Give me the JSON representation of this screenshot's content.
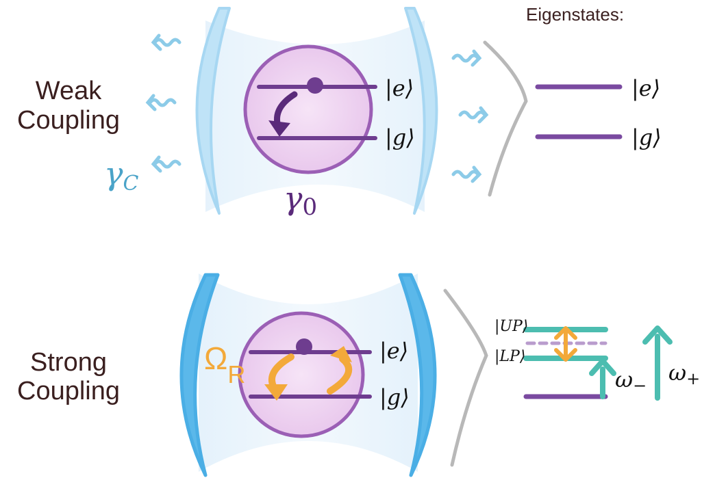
{
  "header": {
    "eigenstates_label": "Eigenstates:"
  },
  "weak": {
    "label_line1": "Weak",
    "label_line2": "Coupling",
    "gamma_c": "γ",
    "gamma_c_sub": "C",
    "gamma_0": "γ",
    "gamma_0_sub": "0",
    "ket_e": "|e⟩",
    "ket_g": "|g⟩",
    "eig_e": "|e⟩",
    "eig_g": "|g⟩"
  },
  "strong": {
    "label_line1": "Strong",
    "label_line2": "Coupling",
    "omega_r": "Ω",
    "omega_r_sub": "R",
    "ket_e": "|e⟩",
    "ket_g": "|g⟩",
    "ket_up": "|UP⟩",
    "ket_lp": "|LP⟩",
    "omega_minus": "ω",
    "omega_minus_sub": "−",
    "omega_plus": "ω",
    "omega_plus_sub": "+"
  },
  "colors": {
    "label_text": "#3a1f1f",
    "weak_mirror": "#bfe3f7",
    "strong_mirror": "#5bb8ea",
    "cavity_fill": "#e8f4fc",
    "atom_fill": "#f0d6f2",
    "atom_stroke": "#9b5fb5",
    "level_line": "#6e3d8f",
    "gamma_c_color": "#4aa3c8",
    "gamma_0_color": "#5a2a7a",
    "rabi_orange": "#f3a93a",
    "polariton_teal": "#4cbdb0",
    "bracket_gray": "#9a9a9a",
    "photon_blue": "#8ccbe8"
  }
}
